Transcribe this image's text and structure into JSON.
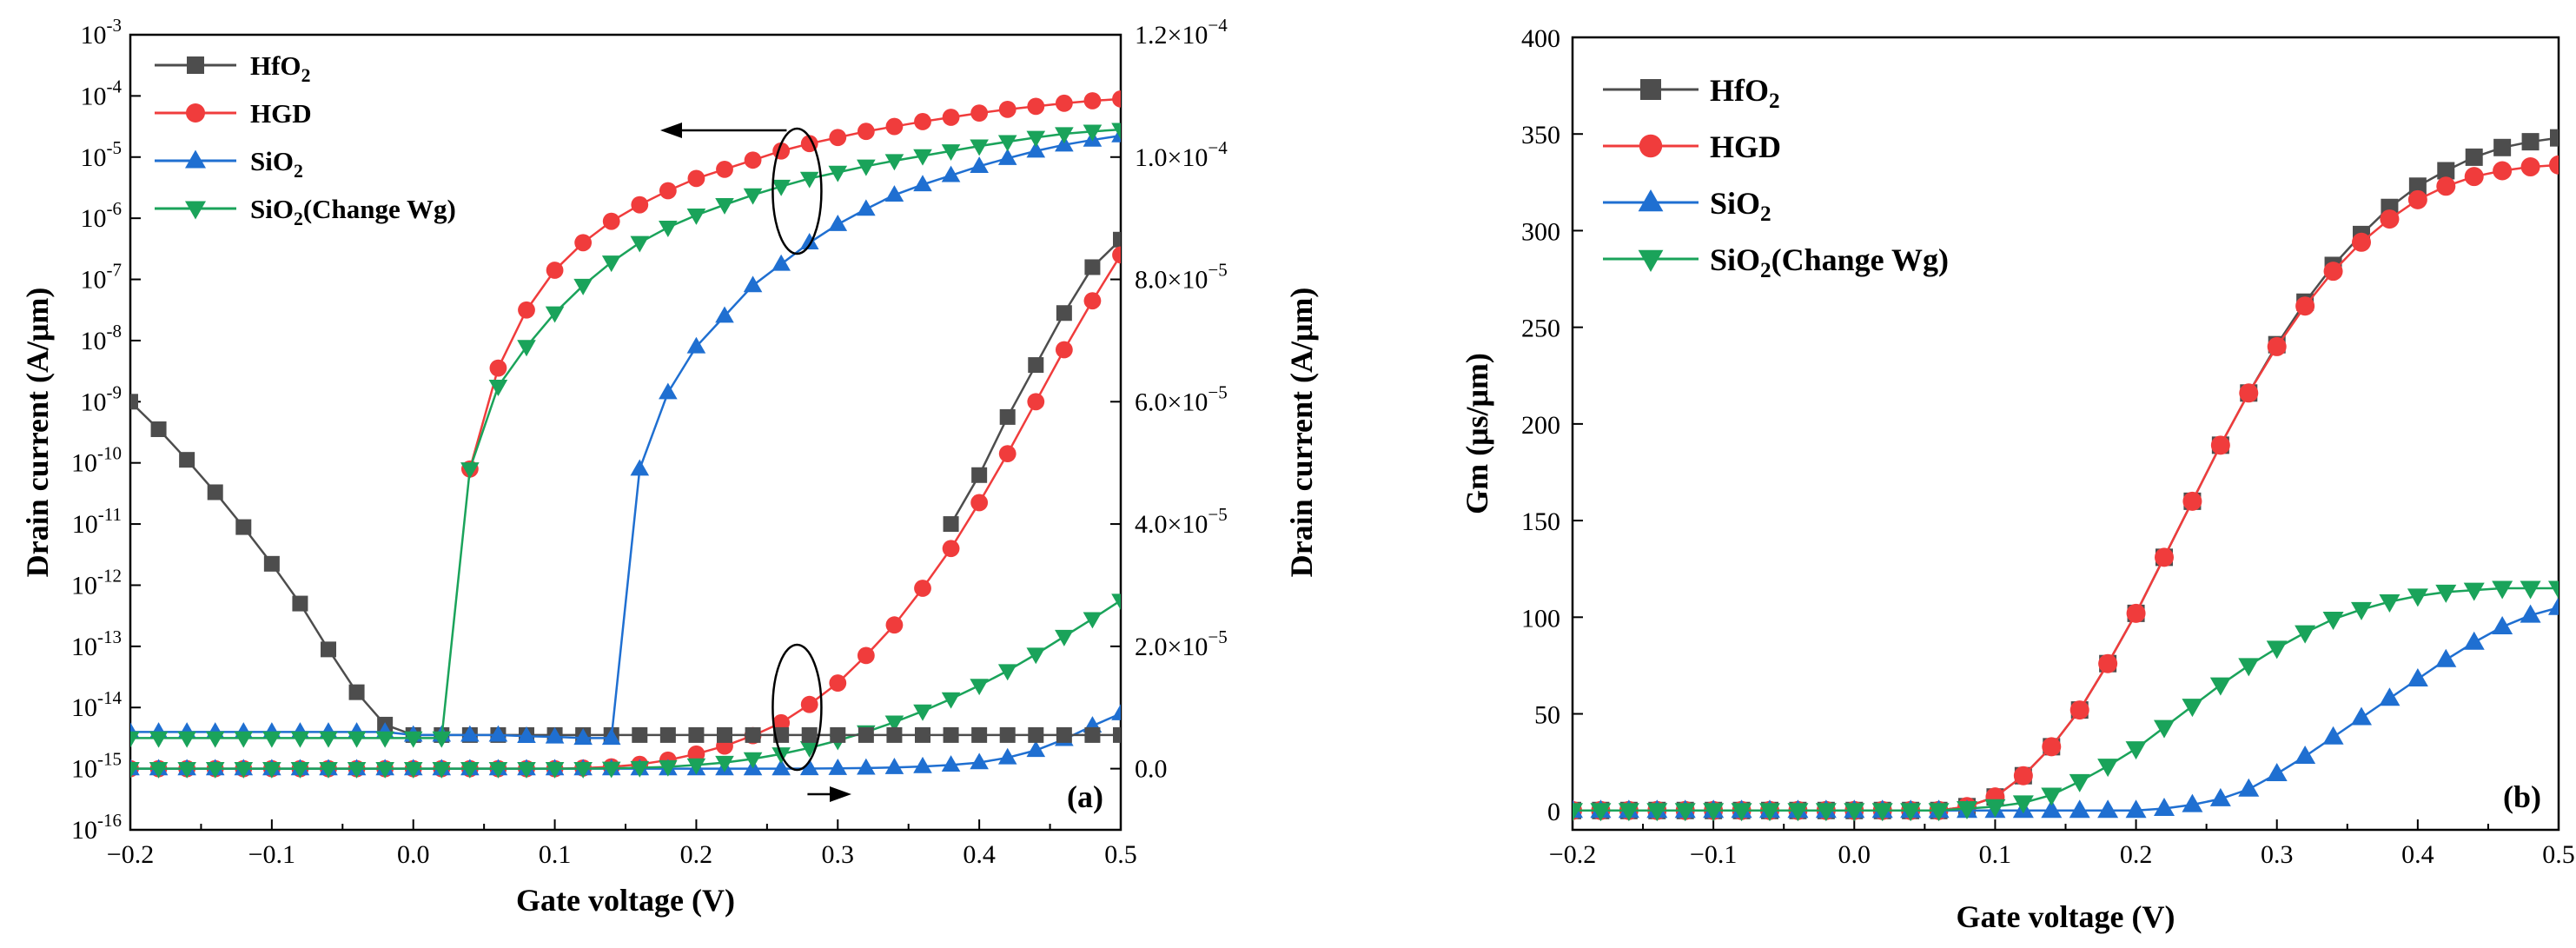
{
  "chart_data": [
    {
      "panel": "a",
      "panel_label": "(a)",
      "type": "line",
      "xlabel": "Gate voltage (V)",
      "ylabel_left": "Drain current (A/μm)",
      "ylabel_right": "Drain current (A/μm)",
      "y_scale_left": "log",
      "xlim": [
        -0.2,
        0.5
      ],
      "ylim_left_exponent": [
        -16,
        -3
      ],
      "ylim_right": [
        -1e-05,
        0.00012
      ],
      "x_ticks": [
        "−0.2",
        "−0.1",
        "0.0",
        "0.1",
        "0.2",
        "0.3",
        "0.4",
        "0.5"
      ],
      "x_tick_values": [
        -0.2,
        -0.1,
        0.0,
        0.1,
        0.2,
        0.3,
        0.4,
        0.5
      ],
      "y_left_tick_exponents": [
        "-16",
        "-15",
        "-14",
        "-13",
        "-12",
        "-11",
        "-10",
        "-9",
        "-8",
        "-7",
        "-6",
        "-5",
        "-4",
        "-3"
      ],
      "y_left_tick_base": "10",
      "y_right_ticks": [
        {
          "value": 0.0,
          "mantissa": "0.0",
          "exponent": ""
        },
        {
          "value": 2e-05,
          "mantissa": "2.0×10",
          "exponent": "−5"
        },
        {
          "value": 4e-05,
          "mantissa": "4.0×10",
          "exponent": "−5"
        },
        {
          "value": 6e-05,
          "mantissa": "6.0×10",
          "exponent": "−5"
        },
        {
          "value": 8e-05,
          "mantissa": "8.0×10",
          "exponent": "−5"
        },
        {
          "value": 0.0001,
          "mantissa": "1.0×10",
          "exponent": "−4"
        },
        {
          "value": 0.00012,
          "mantissa": "1.2×10",
          "exponent": "−4"
        }
      ],
      "legend_position": "top-left",
      "annotations": [
        {
          "text": "upper ellipse with arrow pointing to left axis (log scale curves)",
          "x": 0.27,
          "arrow": "left"
        },
        {
          "text": "lower ellipse with arrow pointing to right axis (linear scale curves)",
          "x": 0.27,
          "arrow": "right"
        }
      ],
      "log_series": [
        {
          "name": "HfO",
          "name_sub": "2",
          "color": "#4d4d4d",
          "marker": "square",
          "x": [
            -0.2,
            -0.18,
            -0.16,
            -0.14,
            -0.12,
            -0.1,
            -0.08,
            -0.06,
            -0.04,
            -0.02,
            0.0,
            0.02,
            0.04,
            0.06,
            0.08,
            0.1,
            0.12,
            0.14,
            0.16,
            0.18,
            0.2,
            0.22,
            0.24,
            0.26,
            0.28,
            0.3,
            0.32,
            0.34,
            0.36,
            0.38,
            0.4,
            0.42,
            0.44,
            0.46,
            0.48,
            0.5
          ],
          "y_exp": [
            -9.0,
            -9.45,
            -9.95,
            -10.48,
            -11.05,
            -11.65,
            -12.3,
            -13.05,
            -13.75,
            -14.28,
            -14.45,
            -14.45,
            -14.45,
            -14.45,
            -14.45,
            -14.45,
            -14.45,
            -14.45,
            -14.45,
            -14.45,
            -14.45,
            -14.45,
            -14.45,
            -14.45,
            -14.45,
            -14.45,
            -14.45,
            -14.45,
            -14.45,
            -14.45,
            -14.45,
            -14.45,
            -14.45,
            -14.45,
            -14.45,
            -14.45
          ]
        },
        {
          "name": "HGD",
          "name_sub": "",
          "color": "#f03c3c",
          "marker": "circle",
          "x": [
            0.04,
            0.06,
            0.08,
            0.1,
            0.12,
            0.14,
            0.16,
            0.18,
            0.2,
            0.22,
            0.24,
            0.26,
            0.28,
            0.3,
            0.32,
            0.34,
            0.36,
            0.38,
            0.4,
            0.42,
            0.44,
            0.46,
            0.48,
            0.5
          ],
          "y_exp": [
            -10.1,
            -8.45,
            -7.5,
            -6.85,
            -6.4,
            -6.05,
            -5.78,
            -5.55,
            -5.35,
            -5.2,
            -5.05,
            -4.9,
            -4.78,
            -4.68,
            -4.58,
            -4.5,
            -4.42,
            -4.35,
            -4.28,
            -4.22,
            -4.17,
            -4.12,
            -4.08,
            -4.05
          ]
        },
        {
          "name": "SiO",
          "name_sub": "2",
          "color": "#1f6fd1",
          "marker": "triangle-up",
          "x": [
            -0.2,
            -0.18,
            -0.16,
            -0.14,
            -0.12,
            -0.1,
            -0.08,
            -0.06,
            -0.04,
            -0.02,
            0.0,
            0.02,
            0.04,
            0.06,
            0.08,
            0.1,
            0.12,
            0.14,
            0.16,
            0.18,
            0.2,
            0.22,
            0.24,
            0.26,
            0.28,
            0.3,
            0.32,
            0.34,
            0.36,
            0.38,
            0.4,
            0.42,
            0.44,
            0.46,
            0.48,
            0.5
          ],
          "y_exp": [
            -14.4,
            -14.4,
            -14.4,
            -14.4,
            -14.4,
            -14.4,
            -14.4,
            -14.4,
            -14.4,
            -14.4,
            -14.45,
            -14.45,
            -14.45,
            -14.45,
            -14.47,
            -14.48,
            -14.5,
            -14.5,
            -10.1,
            -8.85,
            -8.1,
            -7.6,
            -7.1,
            -6.75,
            -6.4,
            -6.1,
            -5.85,
            -5.62,
            -5.45,
            -5.3,
            -5.15,
            -5.02,
            -4.9,
            -4.8,
            -4.72,
            -4.65
          ]
        },
        {
          "name": "SiO",
          "name_sub": "2",
          "name_suffix": "(Change Wg)",
          "color": "#1aa35a",
          "marker": "triangle-down",
          "x": [
            -0.2,
            -0.18,
            -0.16,
            -0.14,
            -0.12,
            -0.1,
            -0.08,
            -0.06,
            -0.04,
            -0.02,
            0.0,
            0.02,
            0.04,
            0.06,
            0.08,
            0.1,
            0.12,
            0.14,
            0.16,
            0.18,
            0.2,
            0.22,
            0.24,
            0.26,
            0.28,
            0.3,
            0.32,
            0.34,
            0.36,
            0.38,
            0.4,
            0.42,
            0.44,
            0.46,
            0.48,
            0.5
          ],
          "y_exp": [
            -14.5,
            -14.5,
            -14.5,
            -14.5,
            -14.5,
            -14.5,
            -14.5,
            -14.5,
            -14.5,
            -14.5,
            -14.5,
            -14.5,
            -10.1,
            -8.75,
            -8.1,
            -7.55,
            -7.1,
            -6.72,
            -6.4,
            -6.15,
            -5.95,
            -5.78,
            -5.62,
            -5.48,
            -5.35,
            -5.25,
            -5.15,
            -5.06,
            -4.98,
            -4.9,
            -4.82,
            -4.75,
            -4.68,
            -4.62,
            -4.58,
            -4.55
          ]
        }
      ],
      "linear_series": [
        {
          "name": "HfO2 (right axis)",
          "color": "#4d4d4d",
          "marker": "square",
          "x": [
            0.38,
            0.4,
            0.42,
            0.44,
            0.46,
            0.48,
            0.5
          ],
          "y": [
            4e-05,
            4.8e-05,
            5.75e-05,
            6.6e-05,
            7.45e-05,
            8.2e-05,
            8.65e-05
          ]
        },
        {
          "name": "HGD (right axis)",
          "color": "#f03c3c",
          "marker": "circle",
          "x": [
            -0.2,
            -0.18,
            -0.16,
            -0.14,
            -0.12,
            -0.1,
            -0.08,
            -0.06,
            -0.04,
            -0.02,
            0.0,
            0.02,
            0.04,
            0.06,
            0.08,
            0.1,
            0.12,
            0.14,
            0.16,
            0.18,
            0.2,
            0.22,
            0.24,
            0.26,
            0.28,
            0.3,
            0.32,
            0.34,
            0.36,
            0.38,
            0.4,
            0.42,
            0.44,
            0.46,
            0.48,
            0.5
          ],
          "y": [
            0,
            0,
            0,
            0,
            0,
            0,
            0,
            0,
            0,
            0,
            0,
            0,
            0,
            0,
            0,
            0,
            1e-07,
            3e-07,
            7e-07,
            1.4e-06,
            2.4e-06,
            3.7e-06,
            5.4e-06,
            7.5e-06,
            1.05e-05,
            1.4e-05,
            1.85e-05,
            2.35e-05,
            2.95e-05,
            3.6e-05,
            4.35e-05,
            5.15e-05,
            6e-05,
            6.85e-05,
            7.65e-05,
            8.4e-05
          ]
        },
        {
          "name": "SiO2 (right axis)",
          "color": "#1f6fd1",
          "marker": "triangle-up",
          "x": [
            -0.2,
            -0.18,
            -0.16,
            -0.14,
            -0.12,
            -0.1,
            -0.08,
            -0.06,
            -0.04,
            -0.02,
            0.0,
            0.02,
            0.04,
            0.06,
            0.08,
            0.1,
            0.12,
            0.14,
            0.16,
            0.18,
            0.2,
            0.22,
            0.24,
            0.26,
            0.28,
            0.3,
            0.32,
            0.34,
            0.36,
            0.38,
            0.4,
            0.42,
            0.44,
            0.46,
            0.48,
            0.5
          ],
          "y": [
            0,
            0,
            0,
            0,
            0,
            0,
            0,
            0,
            0,
            0,
            0,
            0,
            0,
            0,
            0,
            0,
            0,
            0,
            0,
            0,
            0,
            0,
            0,
            0,
            2e-08,
            5e-08,
            1e-07,
            2e-07,
            3.5e-07,
            6e-07,
            1e-06,
            1.8e-06,
            3e-06,
            4.8e-06,
            7e-06,
            9e-06
          ]
        },
        {
          "name": "SiO2(Change Wg) (right axis)",
          "color": "#1aa35a",
          "marker": "triangle-down",
          "x": [
            -0.2,
            -0.18,
            -0.16,
            -0.14,
            -0.12,
            -0.1,
            -0.08,
            -0.06,
            -0.04,
            -0.02,
            0.0,
            0.02,
            0.04,
            0.06,
            0.08,
            0.1,
            0.12,
            0.14,
            0.16,
            0.18,
            0.2,
            0.22,
            0.24,
            0.26,
            0.28,
            0.3,
            0.32,
            0.34,
            0.36,
            0.38,
            0.4,
            0.42,
            0.44,
            0.46,
            0.48,
            0.5
          ],
          "y": [
            0,
            0,
            0,
            0,
            0,
            0,
            0,
            0,
            0,
            0,
            0,
            0,
            0,
            0,
            0,
            0,
            0,
            5e-08,
            1.5e-07,
            3e-07,
            6e-07,
            1e-06,
            1.6e-06,
            2.4e-06,
            3.4e-06,
            4.6e-06,
            6e-06,
            7.6e-06,
            9.4e-06,
            1.14e-05,
            1.36e-05,
            1.6e-05,
            1.87e-05,
            2.16e-05,
            2.45e-05,
            2.75e-05
          ]
        }
      ]
    },
    {
      "panel": "b",
      "panel_label": "(b)",
      "type": "line",
      "xlabel": "Gate voltage (V)",
      "ylabel": "Gm (μs/μm)",
      "xlim": [
        -0.2,
        0.5
      ],
      "ylim": [
        -10,
        400
      ],
      "x_ticks": [
        "−0.2",
        "−0.1",
        "0.0",
        "0.1",
        "0.2",
        "0.3",
        "0.4",
        "0.5"
      ],
      "x_tick_values": [
        -0.2,
        -0.1,
        0.0,
        0.1,
        0.2,
        0.3,
        0.4,
        0.5
      ],
      "y_ticks": [
        "0",
        "50",
        "100",
        "150",
        "200",
        "250",
        "300",
        "350",
        "400"
      ],
      "y_tick_values": [
        0,
        50,
        100,
        150,
        200,
        250,
        300,
        350,
        400
      ],
      "legend_position": "top-left",
      "series": [
        {
          "name": "HfO",
          "name_sub": "2",
          "color": "#4d4d4d",
          "marker": "square",
          "x": [
            -0.2,
            -0.18,
            -0.16,
            -0.14,
            -0.12,
            -0.1,
            -0.08,
            -0.06,
            -0.04,
            -0.02,
            0.0,
            0.02,
            0.04,
            0.06,
            0.08,
            0.1,
            0.12,
            0.14,
            0.16,
            0.18,
            0.2,
            0.22,
            0.24,
            0.26,
            0.28,
            0.3,
            0.32,
            0.34,
            0.36,
            0.38,
            0.4,
            0.42,
            0.44,
            0.46,
            0.48,
            0.5
          ],
          "y": [
            0,
            0,
            0,
            0,
            0,
            0,
            0,
            0,
            0,
            0,
            0,
            0,
            0,
            0,
            2,
            7,
            18,
            33,
            52,
            76,
            102,
            131,
            160,
            189,
            216,
            241,
            263,
            282,
            298,
            312,
            323,
            331,
            338,
            343,
            346,
            348
          ]
        },
        {
          "name": "HGD",
          "name_sub": "",
          "color": "#f03c3c",
          "marker": "circle",
          "x": [
            -0.2,
            -0.18,
            -0.16,
            -0.14,
            -0.12,
            -0.1,
            -0.08,
            -0.06,
            -0.04,
            -0.02,
            0.0,
            0.02,
            0.04,
            0.06,
            0.08,
            0.1,
            0.12,
            0.14,
            0.16,
            0.18,
            0.2,
            0.22,
            0.24,
            0.26,
            0.28,
            0.3,
            0.32,
            0.34,
            0.36,
            0.38,
            0.4,
            0.42,
            0.44,
            0.46,
            0.48,
            0.5
          ],
          "y": [
            0,
            0,
            0,
            0,
            0,
            0,
            0,
            0,
            0,
            0,
            0,
            0,
            0,
            0,
            2,
            7,
            18,
            33,
            52,
            76,
            102,
            131,
            160,
            189,
            216,
            240,
            261,
            279,
            294,
            306,
            316,
            323,
            328,
            331,
            333,
            334
          ]
        },
        {
          "name": "SiO",
          "name_sub": "2",
          "color": "#1f6fd1",
          "marker": "triangle-up",
          "x": [
            -0.2,
            -0.18,
            -0.16,
            -0.14,
            -0.12,
            -0.1,
            -0.08,
            -0.06,
            -0.04,
            -0.02,
            0.0,
            0.02,
            0.04,
            0.06,
            0.08,
            0.1,
            0.12,
            0.14,
            0.16,
            0.18,
            0.2,
            0.22,
            0.24,
            0.26,
            0.28,
            0.3,
            0.32,
            0.34,
            0.36,
            0.38,
            0.4,
            0.42,
            0.44,
            0.46,
            0.48,
            0.5
          ],
          "y": [
            0,
            0,
            0,
            0,
            0,
            0,
            0,
            0,
            0,
            0,
            0,
            0,
            0,
            0,
            0,
            0,
            0,
            0,
            0,
            0,
            0,
            1,
            3,
            6,
            11,
            19,
            28,
            38,
            48,
            58,
            68,
            78,
            87,
            95,
            101,
            105
          ]
        },
        {
          "name": "SiO",
          "name_sub": "2",
          "name_suffix": "(Change Wg)",
          "color": "#1aa35a",
          "marker": "triangle-down",
          "x": [
            -0.2,
            -0.18,
            -0.16,
            -0.14,
            -0.12,
            -0.1,
            -0.08,
            -0.06,
            -0.04,
            -0.02,
            0.0,
            0.02,
            0.04,
            0.06,
            0.08,
            0.1,
            0.12,
            0.14,
            0.16,
            0.18,
            0.2,
            0.22,
            0.24,
            0.26,
            0.28,
            0.3,
            0.32,
            0.34,
            0.36,
            0.38,
            0.4,
            0.42,
            0.44,
            0.46,
            0.48,
            0.5
          ],
          "y": [
            0,
            0,
            0,
            0,
            0,
            0,
            0,
            0,
            0,
            0,
            0,
            0,
            0,
            0,
            1,
            2,
            4,
            8,
            15,
            23,
            32,
            43,
            54,
            65,
            75,
            84,
            92,
            99,
            104,
            108,
            111,
            113,
            114,
            115,
            115,
            115
          ]
        }
      ]
    }
  ]
}
